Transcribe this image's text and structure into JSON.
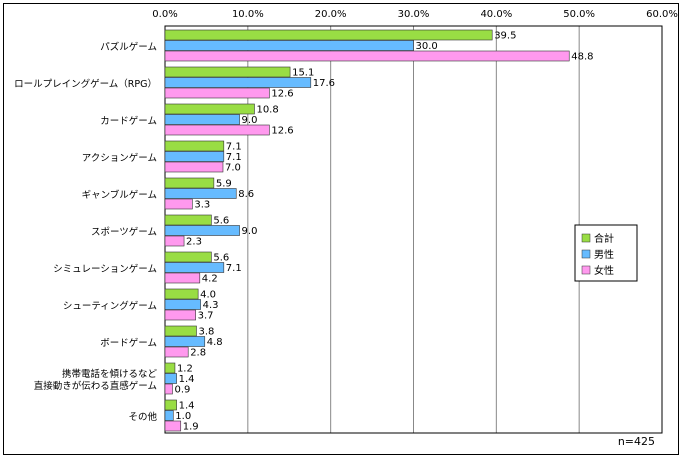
{
  "chart_data": {
    "type": "bar",
    "orientation": "horizontal",
    "xlim": [
      0,
      60
    ],
    "x_ticks": [
      "0.0%",
      "10.0%",
      "20.0%",
      "30.0%",
      "40.0%",
      "50.0%",
      "60.0%"
    ],
    "categories": [
      [
        "パズルゲーム"
      ],
      [
        "ロールプレイングゲーム（RPG）"
      ],
      [
        "カードゲーム"
      ],
      [
        "アクションゲーム"
      ],
      [
        "ギャンブルゲーム"
      ],
      [
        "スポーツゲーム"
      ],
      [
        "シミュレーションゲーム"
      ],
      [
        "シューティングゲーム"
      ],
      [
        "ボードゲーム"
      ],
      [
        "携帯電話を傾けるなど",
        "直接動きが伝わる直感ゲーム"
      ],
      [
        "その他"
      ]
    ],
    "series": [
      {
        "name": "合計",
        "color": "#99dd44",
        "values": [
          39.5,
          15.1,
          10.8,
          7.1,
          5.9,
          5.6,
          5.6,
          4.0,
          3.8,
          1.2,
          1.4
        ]
      },
      {
        "name": "男性",
        "color": "#66bbff",
        "values": [
          30.0,
          17.6,
          9.0,
          7.1,
          8.6,
          9.0,
          7.1,
          4.3,
          4.8,
          1.4,
          1.0
        ]
      },
      {
        "name": "女性",
        "color": "#ff99ee",
        "values": [
          48.8,
          12.6,
          12.6,
          7.0,
          3.3,
          2.3,
          4.2,
          3.7,
          2.8,
          0.9,
          1.9
        ]
      }
    ],
    "grid": true,
    "legend_position": "right",
    "note": "n=425"
  }
}
